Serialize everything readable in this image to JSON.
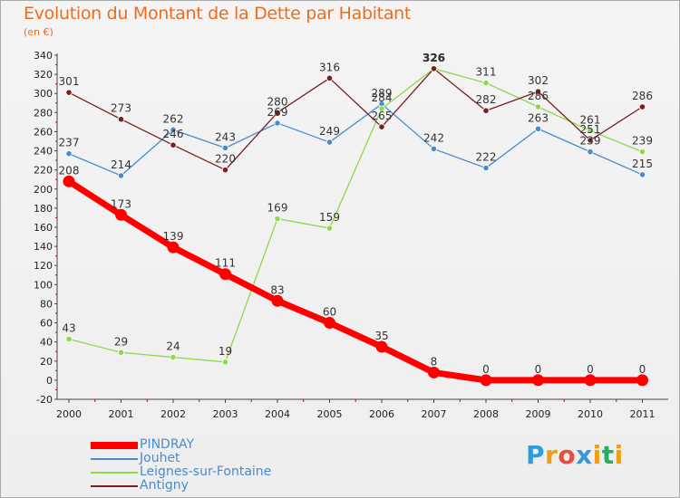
{
  "chart_data": {
    "type": "line",
    "title": "Evolution du Montant de la Dette par Habitant",
    "subtitle": "(en €)",
    "xlabel": "",
    "ylabel": "",
    "x": [
      "2000",
      "2001",
      "2002",
      "2003",
      "2004",
      "2005",
      "2006",
      "2007",
      "2008",
      "2009",
      "2010",
      "2011"
    ],
    "ylim": [
      -20,
      340
    ],
    "yticks": [
      -20,
      0,
      20,
      40,
      60,
      80,
      100,
      120,
      140,
      160,
      180,
      200,
      220,
      240,
      260,
      280,
      300,
      320,
      340
    ],
    "grid": false,
    "legend_position": "bottom-left",
    "series": [
      {
        "name": "PINDRAY",
        "color": "#ff0000",
        "values": [
          208,
          173,
          139,
          111,
          83,
          60,
          35,
          8,
          0,
          0,
          0,
          0
        ]
      },
      {
        "name": "Jouhet",
        "color": "#4a8bcb",
        "values": [
          237,
          214,
          262,
          243,
          269,
          249,
          289,
          242,
          222,
          263,
          239,
          215
        ]
      },
      {
        "name": "Leignes-sur-Fontaine",
        "color": "#8ed84b",
        "values": [
          43,
          29,
          24,
          19,
          169,
          159,
          284,
          326,
          311,
          286,
          261,
          239
        ]
      },
      {
        "name": "Antigny",
        "color": "#7a1e1e",
        "values": [
          301,
          273,
          246,
          220,
          280,
          316,
          265,
          326,
          282,
          302,
          251,
          286
        ]
      }
    ]
  },
  "logo": {
    "text": "Proxiti",
    "letters": [
      "P",
      "r",
      "o",
      "x",
      "i",
      "t",
      "i"
    ],
    "colors": [
      "#2e9de0",
      "#f39c12",
      "#e74c3c",
      "#3498db",
      "#f39c12",
      "#27ae60",
      "#f39c12"
    ]
  }
}
